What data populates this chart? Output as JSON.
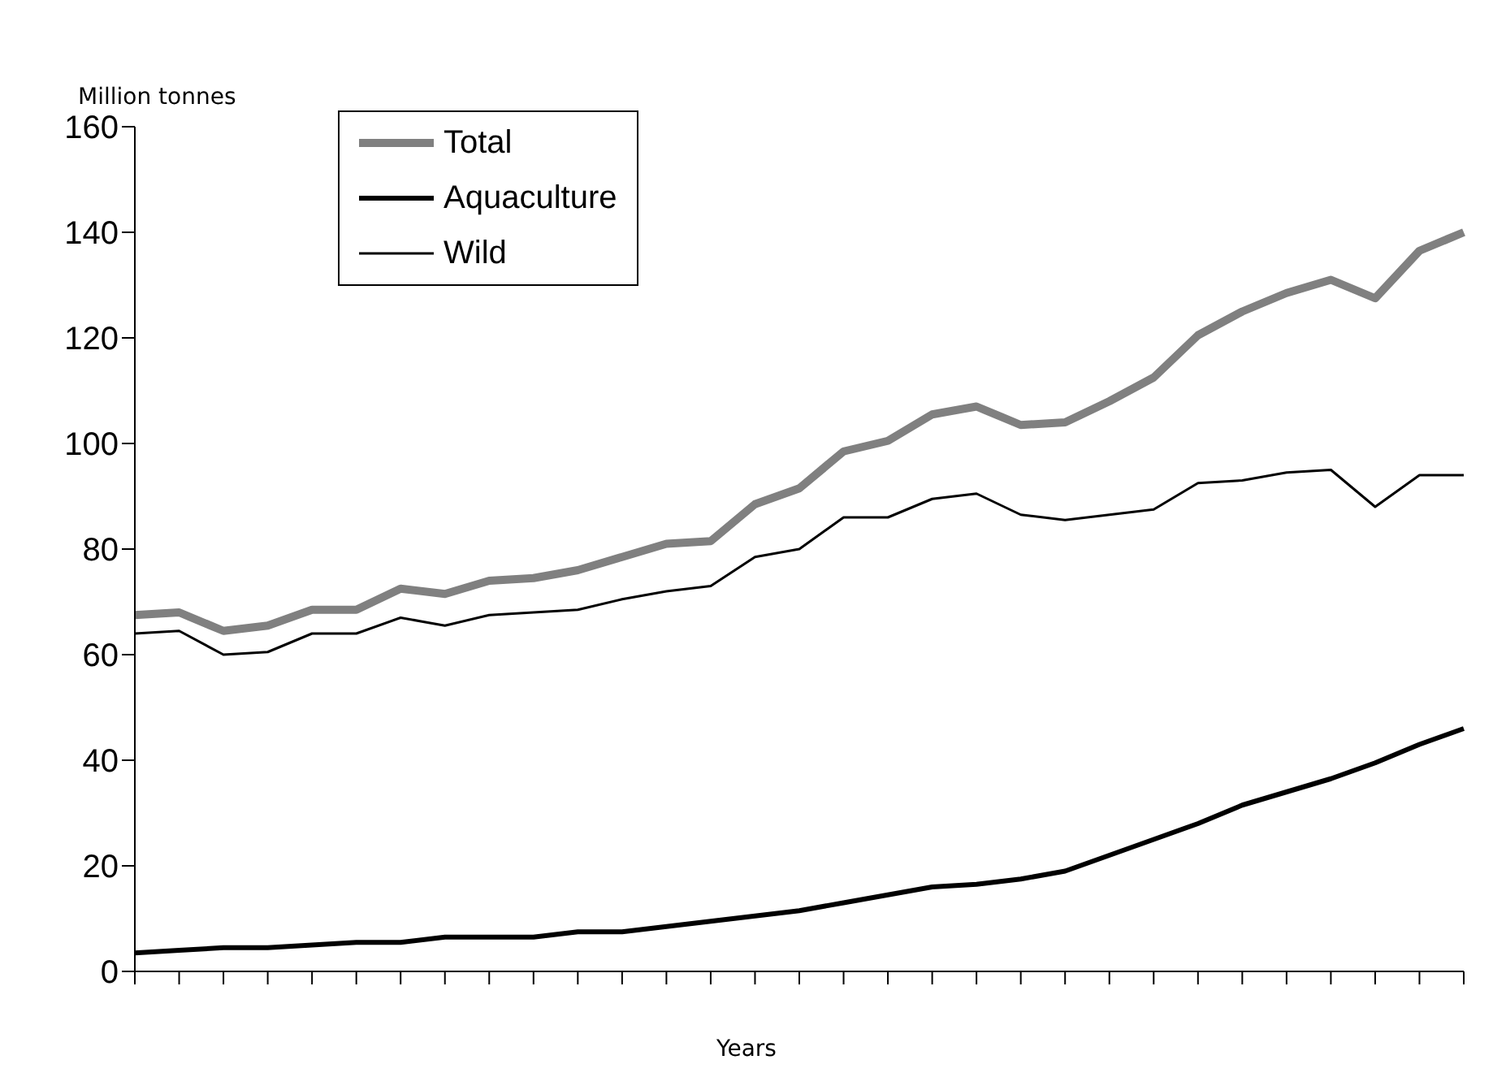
{
  "chart_data": {
    "type": "line",
    "ylabel": "Million tonnes",
    "xlabel": "Years",
    "categories": [
      null,
      null,
      null,
      null,
      null,
      null,
      null,
      null,
      null,
      null,
      null,
      null,
      null,
      null,
      null,
      null,
      null,
      null,
      null,
      null,
      null,
      null,
      null,
      null,
      null,
      null,
      null,
      null,
      null,
      null,
      null
    ],
    "series": [
      {
        "name": "Total",
        "color": "#808080",
        "values": [
          67.5,
          68,
          64.5,
          65.5,
          68.5,
          68.5,
          72.5,
          71.5,
          74,
          74.5,
          76,
          78.5,
          81,
          81.5,
          88.5,
          91.5,
          98.5,
          100.5,
          105.5,
          107,
          103.5,
          104,
          108,
          112.5,
          120.5,
          125,
          128.5,
          131,
          127.5,
          136.5,
          140
        ]
      },
      {
        "name": "Aquaculture",
        "color": "#000000",
        "values": [
          3.5,
          4,
          4.5,
          4.5,
          5,
          5.5,
          5.5,
          6.5,
          6.5,
          6.5,
          7.5,
          7.5,
          8.5,
          9.5,
          10.5,
          11.5,
          13,
          14.5,
          16,
          16.5,
          17.5,
          19,
          22,
          25,
          28,
          31.5,
          34,
          36.5,
          39.5,
          43,
          46
        ]
      },
      {
        "name": "Wild",
        "color": "#000000",
        "values": [
          64,
          64.5,
          60,
          60.5,
          64,
          64,
          67,
          65.5,
          67.5,
          68,
          68.5,
          70.5,
          72,
          73,
          78.5,
          80,
          86,
          86,
          89.5,
          90.5,
          86.5,
          85.5,
          86.5,
          87.5,
          92.5,
          93,
          94.5,
          95,
          88,
          94,
          94
        ]
      }
    ],
    "ylim": [
      0,
      160
    ],
    "yticks": [
      0,
      20,
      40,
      60,
      80,
      100,
      120,
      140,
      160
    ],
    "grid": false,
    "legend": "top left",
    "marker": "none",
    "line_style": "solid"
  }
}
